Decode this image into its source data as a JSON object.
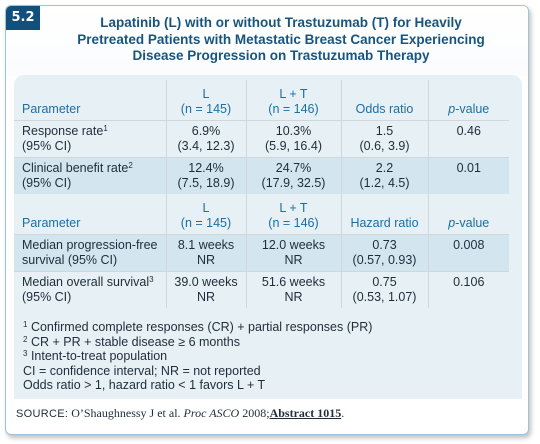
{
  "badge": "5.2",
  "title_lines": [
    "Lapatinib (L) with or without Trastuzumab (T) for Heavily",
    "Pretreated Patients with Metastatic Breast Cancer Experiencing",
    "Disease Progression on Trastuzumab Therapy"
  ],
  "table1": {
    "header": {
      "parameter": "Parameter",
      "l_name": "L",
      "l_n": "(n = 145)",
      "lt_name": "L + T",
      "lt_n": "(n = 146)",
      "ratio": "Odds ratio",
      "p_prefix": "p",
      "p_suffix": "-value"
    },
    "rows": [
      {
        "param_line1": "Response rate",
        "param_sup": "1",
        "param_line2": "(95% CI)",
        "l_line1": "6.9%",
        "l_line2": "(3.4, 12.3)",
        "lt_line1": "10.3%",
        "lt_line2": "(5.9, 16.4)",
        "ratio_line1": "1.5",
        "ratio_line2": "(0.6, 3.9)",
        "p": "0.46"
      },
      {
        "param_line1": "Clinical benefit rate",
        "param_sup": "2",
        "param_line2": "(95% CI)",
        "l_line1": "12.4%",
        "l_line2": "(7.5, 18.9)",
        "lt_line1": "24.7%",
        "lt_line2": "(17.9, 32.5)",
        "ratio_line1": "2.2",
        "ratio_line2": "(1.2, 4.5)",
        "p": "0.01"
      }
    ]
  },
  "table2": {
    "header": {
      "parameter": "Parameter",
      "l_name": "L",
      "l_n": "(n = 145)",
      "lt_name": "L + T",
      "lt_n": "(n = 146)",
      "ratio": "Hazard ratio",
      "p_prefix": "p",
      "p_suffix": "-value"
    },
    "rows": [
      {
        "param_line1": "Median progression-free",
        "param_sup": "",
        "param_line2": "survival (95% CI)",
        "l_line1": "8.1 weeks",
        "l_line2": "NR",
        "lt_line1": "12.0 weeks",
        "lt_line2": "NR",
        "ratio_line1": "0.73",
        "ratio_line2": "(0.57, 0.93)",
        "p": "0.008"
      },
      {
        "param_line1": "Median overall survival",
        "param_sup": "3",
        "param_line2": "(95% CI)",
        "l_line1": "39.0 weeks",
        "l_line2": "NR",
        "lt_line1": "51.6 weeks",
        "lt_line2": "NR",
        "ratio_line1": "0.75",
        "ratio_line2": "(0.53, 1.07)",
        "p": "0.106"
      }
    ]
  },
  "footnotes": [
    {
      "sup": "1",
      "text": "Confirmed complete responses (CR) + partial responses (PR)"
    },
    {
      "sup": "2",
      "text": "CR + PR + stable disease ≥ 6 months"
    },
    {
      "sup": "3",
      "text": "Intent-to-treat population"
    },
    {
      "sup": "",
      "text": "CI = confidence interval; NR = not reported"
    },
    {
      "sup": "",
      "text": "Odds ratio > 1, hazard ratio < 1 favors L + T"
    }
  ],
  "source": {
    "label": "SOURCE:",
    "authors": "O’Shaughnessy J et al.",
    "journal": "Proc ASCO",
    "year": "2008;",
    "abstract": "Abstract 1015",
    "end": "."
  }
}
